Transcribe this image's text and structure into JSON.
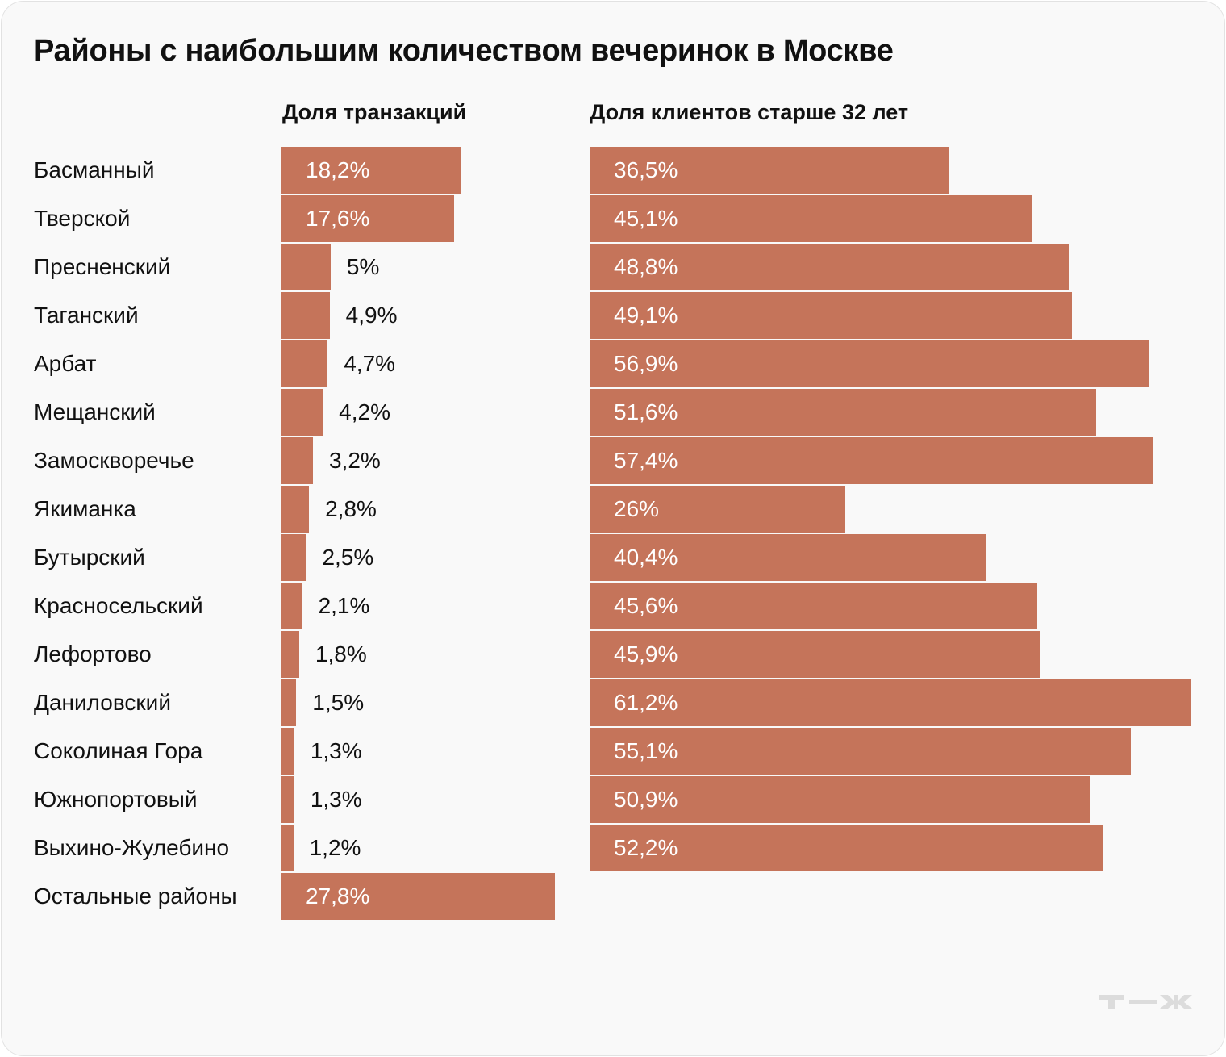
{
  "title": "Районы с наибольшим количеством вечеринок в Москве",
  "logo_text": "Т—Ж",
  "chart_data": [
    {
      "type": "bar",
      "orientation": "horizontal",
      "title": "Доля транзакций",
      "unit": "%",
      "color": "#c5745a",
      "categories": [
        "Басманный",
        "Тверской",
        "Пресненский",
        "Таганский",
        "Арбат",
        "Мещанский",
        "Замоскворечье",
        "Якиманка",
        "Бутырский",
        "Красносельский",
        "Лефортово",
        "Даниловский",
        "Соколиная Гора",
        "Южнопортовый",
        "Выхино-Жулебино",
        "Остальные районы"
      ],
      "values": [
        18.2,
        17.6,
        5,
        4.9,
        4.7,
        4.2,
        3.2,
        2.8,
        2.5,
        2.1,
        1.8,
        1.5,
        1.3,
        1.3,
        1.2,
        27.8
      ],
      "labels": [
        "18,2%",
        "17,6%",
        "5%",
        "4,9%",
        "4,7%",
        "4,2%",
        "3,2%",
        "2,8%",
        "2,5%",
        "2,1%",
        "1,8%",
        "1,5%",
        "1,3%",
        "1,3%",
        "1,2%",
        "27,8%"
      ]
    },
    {
      "type": "bar",
      "orientation": "horizontal",
      "title": "Доля клиентов старше 32 лет",
      "unit": "%",
      "color": "#c5745a",
      "categories": [
        "Басманный",
        "Тверской",
        "Пресненский",
        "Таганский",
        "Арбат",
        "Мещанский",
        "Замоскворечье",
        "Якиманка",
        "Бутырский",
        "Красносельский",
        "Лефортово",
        "Даниловский",
        "Соколиная Гора",
        "Южнопортовый",
        "Выхино-Жулебино"
      ],
      "values": [
        36.5,
        45.1,
        48.8,
        49.1,
        56.9,
        51.6,
        57.4,
        26,
        40.4,
        45.6,
        45.9,
        61.2,
        55.1,
        50.9,
        52.2
      ],
      "labels": [
        "36,5%",
        "45,1%",
        "48,8%",
        "49,1%",
        "56,9%",
        "51,6%",
        "57,4%",
        "26%",
        "40,4%",
        "45,6%",
        "45,9%",
        "61,2%",
        "55,1%",
        "50,9%",
        "52,2%"
      ]
    }
  ]
}
